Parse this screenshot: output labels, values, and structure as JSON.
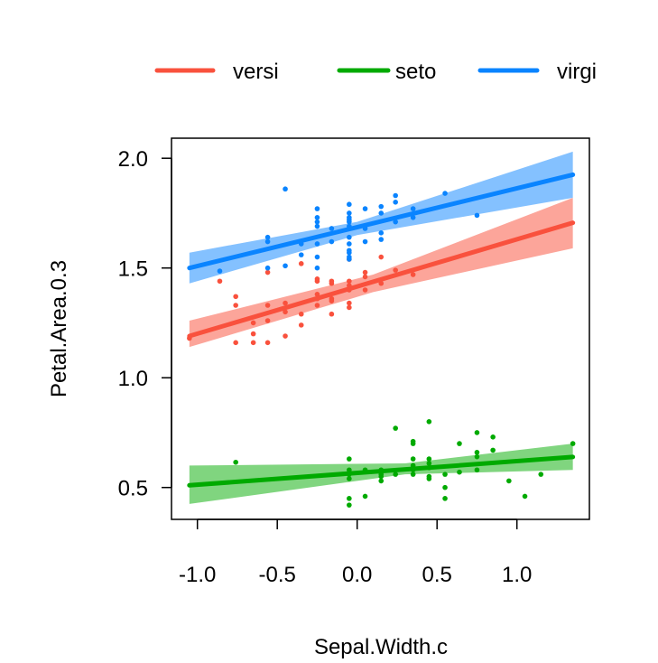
{
  "chart_data": {
    "type": "scatter",
    "xlabel": "Sepal.Width.c",
    "ylabel": "Petal.Area.0.3",
    "xlim": [
      -1.12,
      1.4
    ],
    "ylim": [
      0.355,
      2.095
    ],
    "xticks": [
      {
        "v": -1.0,
        "label": "-1.0"
      },
      {
        "v": -0.5,
        "label": "-0.5"
      },
      {
        "v": 0.0,
        "label": "0.0"
      },
      {
        "v": 0.5,
        "label": "0.5"
      },
      {
        "v": 1.0,
        "label": "1.0"
      }
    ],
    "yticks": [
      {
        "v": 0.5,
        "label": "0.5"
      },
      {
        "v": 1.0,
        "label": "1.0"
      },
      {
        "v": 1.5,
        "label": "1.5"
      },
      {
        "v": 2.0,
        "label": "2.0"
      }
    ],
    "grid": false,
    "legend_position": "top",
    "series": [
      {
        "name": "versi",
        "color": "#F9513D",
        "band_color": "#FCA59A",
        "fit": {
          "x": [
            -1.05,
            1.35
          ],
          "y": [
            1.19,
            1.706
          ]
        },
        "band": {
          "x": [
            -1.05,
            0.1,
            1.35
          ],
          "lo": [
            1.14,
            1.39,
            1.59
          ],
          "hi": [
            1.26,
            1.47,
            1.82
          ]
        },
        "points": [
          [
            -1.05,
            1.18
          ],
          [
            -0.86,
            1.44
          ],
          [
            -0.76,
            1.37
          ],
          [
            -0.76,
            1.33
          ],
          [
            -0.76,
            1.16
          ],
          [
            -0.65,
            1.25
          ],
          [
            -0.65,
            1.2
          ],
          [
            -0.65,
            1.16
          ],
          [
            -0.56,
            1.48
          ],
          [
            -0.56,
            1.33
          ],
          [
            -0.56,
            1.26
          ],
          [
            -0.56,
            1.16
          ],
          [
            -0.45,
            1.34
          ],
          [
            -0.45,
            1.3
          ],
          [
            -0.45,
            1.19
          ],
          [
            -0.35,
            1.52
          ],
          [
            -0.35,
            1.29
          ],
          [
            -0.35,
            1.24
          ],
          [
            -0.25,
            1.45
          ],
          [
            -0.25,
            1.44
          ],
          [
            -0.25,
            1.38
          ],
          [
            -0.25,
            1.36
          ],
          [
            -0.25,
            1.33
          ],
          [
            -0.16,
            1.44
          ],
          [
            -0.16,
            1.43
          ],
          [
            -0.16,
            1.36
          ],
          [
            -0.16,
            1.35
          ],
          [
            -0.16,
            1.29
          ],
          [
            -0.05,
            1.54
          ],
          [
            -0.05,
            1.44
          ],
          [
            -0.05,
            1.42
          ],
          [
            -0.05,
            1.4
          ],
          [
            -0.05,
            1.34
          ],
          [
            -0.05,
            1.32
          ],
          [
            0.05,
            1.48
          ],
          [
            0.05,
            1.46
          ],
          [
            0.05,
            1.4
          ],
          [
            0.15,
            1.55
          ],
          [
            0.15,
            1.43
          ],
          [
            0.24,
            1.49
          ],
          [
            0.35,
            1.47
          ]
        ]
      },
      {
        "name": "seto",
        "color": "#00AA00",
        "band_color": "#80D57F",
        "fit": {
          "x": [
            -1.05,
            1.35
          ],
          "y": [
            0.51,
            0.639
          ]
        },
        "band": {
          "x": [
            -1.05,
            0.3,
            1.35
          ],
          "lo": [
            0.425,
            0.56,
            0.58
          ],
          "hi": [
            0.6,
            0.61,
            0.7
          ]
        },
        "points": [
          [
            -0.76,
            0.615
          ],
          [
            -0.05,
            0.63
          ],
          [
            -0.05,
            0.58
          ],
          [
            -0.05,
            0.56
          ],
          [
            -0.05,
            0.54
          ],
          [
            -0.05,
            0.45
          ],
          [
            -0.05,
            0.42
          ],
          [
            0.05,
            0.58
          ],
          [
            0.05,
            0.46
          ],
          [
            0.15,
            0.58
          ],
          [
            0.15,
            0.56
          ],
          [
            0.15,
            0.55
          ],
          [
            0.15,
            0.53
          ],
          [
            0.24,
            0.77
          ],
          [
            0.24,
            0.56
          ],
          [
            0.35,
            0.71
          ],
          [
            0.35,
            0.7
          ],
          [
            0.35,
            0.63
          ],
          [
            0.35,
            0.6
          ],
          [
            0.35,
            0.58
          ],
          [
            0.35,
            0.56
          ],
          [
            0.45,
            0.8
          ],
          [
            0.45,
            0.63
          ],
          [
            0.45,
            0.61
          ],
          [
            0.45,
            0.59
          ],
          [
            0.45,
            0.55
          ],
          [
            0.45,
            0.54
          ],
          [
            0.55,
            0.56
          ],
          [
            0.55,
            0.5
          ],
          [
            0.55,
            0.45
          ],
          [
            0.64,
            0.7
          ],
          [
            0.64,
            0.57
          ],
          [
            0.75,
            0.75
          ],
          [
            0.75,
            0.66
          ],
          [
            0.75,
            0.64
          ],
          [
            0.75,
            0.58
          ],
          [
            0.85,
            0.73
          ],
          [
            0.85,
            0.67
          ],
          [
            0.95,
            0.53
          ],
          [
            1.05,
            0.46
          ],
          [
            1.15,
            0.56
          ],
          [
            1.35,
            0.7
          ]
        ]
      },
      {
        "name": "virgi",
        "color": "#0A84FF",
        "band_color": "#84C1FF",
        "fit": {
          "x": [
            -1.05,
            1.35
          ],
          "y": [
            1.5,
            1.925
          ]
        },
        "band": {
          "x": [
            -1.05,
            0.0,
            1.35
          ],
          "lo": [
            1.43,
            1.65,
            1.82
          ],
          "hi": [
            1.57,
            1.71,
            2.03
          ]
        },
        "points": [
          [
            -0.86,
            1.486
          ],
          [
            -0.56,
            1.64
          ],
          [
            -0.56,
            1.62
          ],
          [
            -0.56,
            1.5
          ],
          [
            -0.45,
            1.86
          ],
          [
            -0.45,
            1.51
          ],
          [
            -0.35,
            1.61
          ],
          [
            -0.35,
            1.56
          ],
          [
            -0.25,
            1.77
          ],
          [
            -0.25,
            1.73
          ],
          [
            -0.25,
            1.71
          ],
          [
            -0.25,
            1.69
          ],
          [
            -0.25,
            1.61
          ],
          [
            -0.25,
            1.55
          ],
          [
            -0.25,
            1.5
          ],
          [
            -0.16,
            1.68
          ],
          [
            -0.16,
            1.62
          ],
          [
            -0.05,
            1.79
          ],
          [
            -0.05,
            1.75
          ],
          [
            -0.05,
            1.73
          ],
          [
            -0.05,
            1.72
          ],
          [
            -0.05,
            1.71
          ],
          [
            -0.05,
            1.69
          ],
          [
            -0.05,
            1.68
          ],
          [
            -0.05,
            1.64
          ],
          [
            -0.05,
            1.61
          ],
          [
            -0.05,
            1.58
          ],
          [
            -0.05,
            1.57
          ],
          [
            -0.05,
            1.55
          ],
          [
            -0.05,
            1.54
          ],
          [
            0.05,
            1.77
          ],
          [
            0.05,
            1.68
          ],
          [
            0.05,
            1.62
          ],
          [
            0.15,
            1.78
          ],
          [
            0.15,
            1.75
          ],
          [
            0.15,
            1.66
          ],
          [
            0.15,
            1.63
          ],
          [
            0.24,
            1.83
          ],
          [
            0.24,
            1.8
          ],
          [
            0.24,
            1.71
          ],
          [
            0.35,
            1.77
          ],
          [
            0.35,
            1.73
          ],
          [
            0.55,
            1.84
          ],
          [
            0.75,
            1.74
          ]
        ]
      }
    ]
  }
}
